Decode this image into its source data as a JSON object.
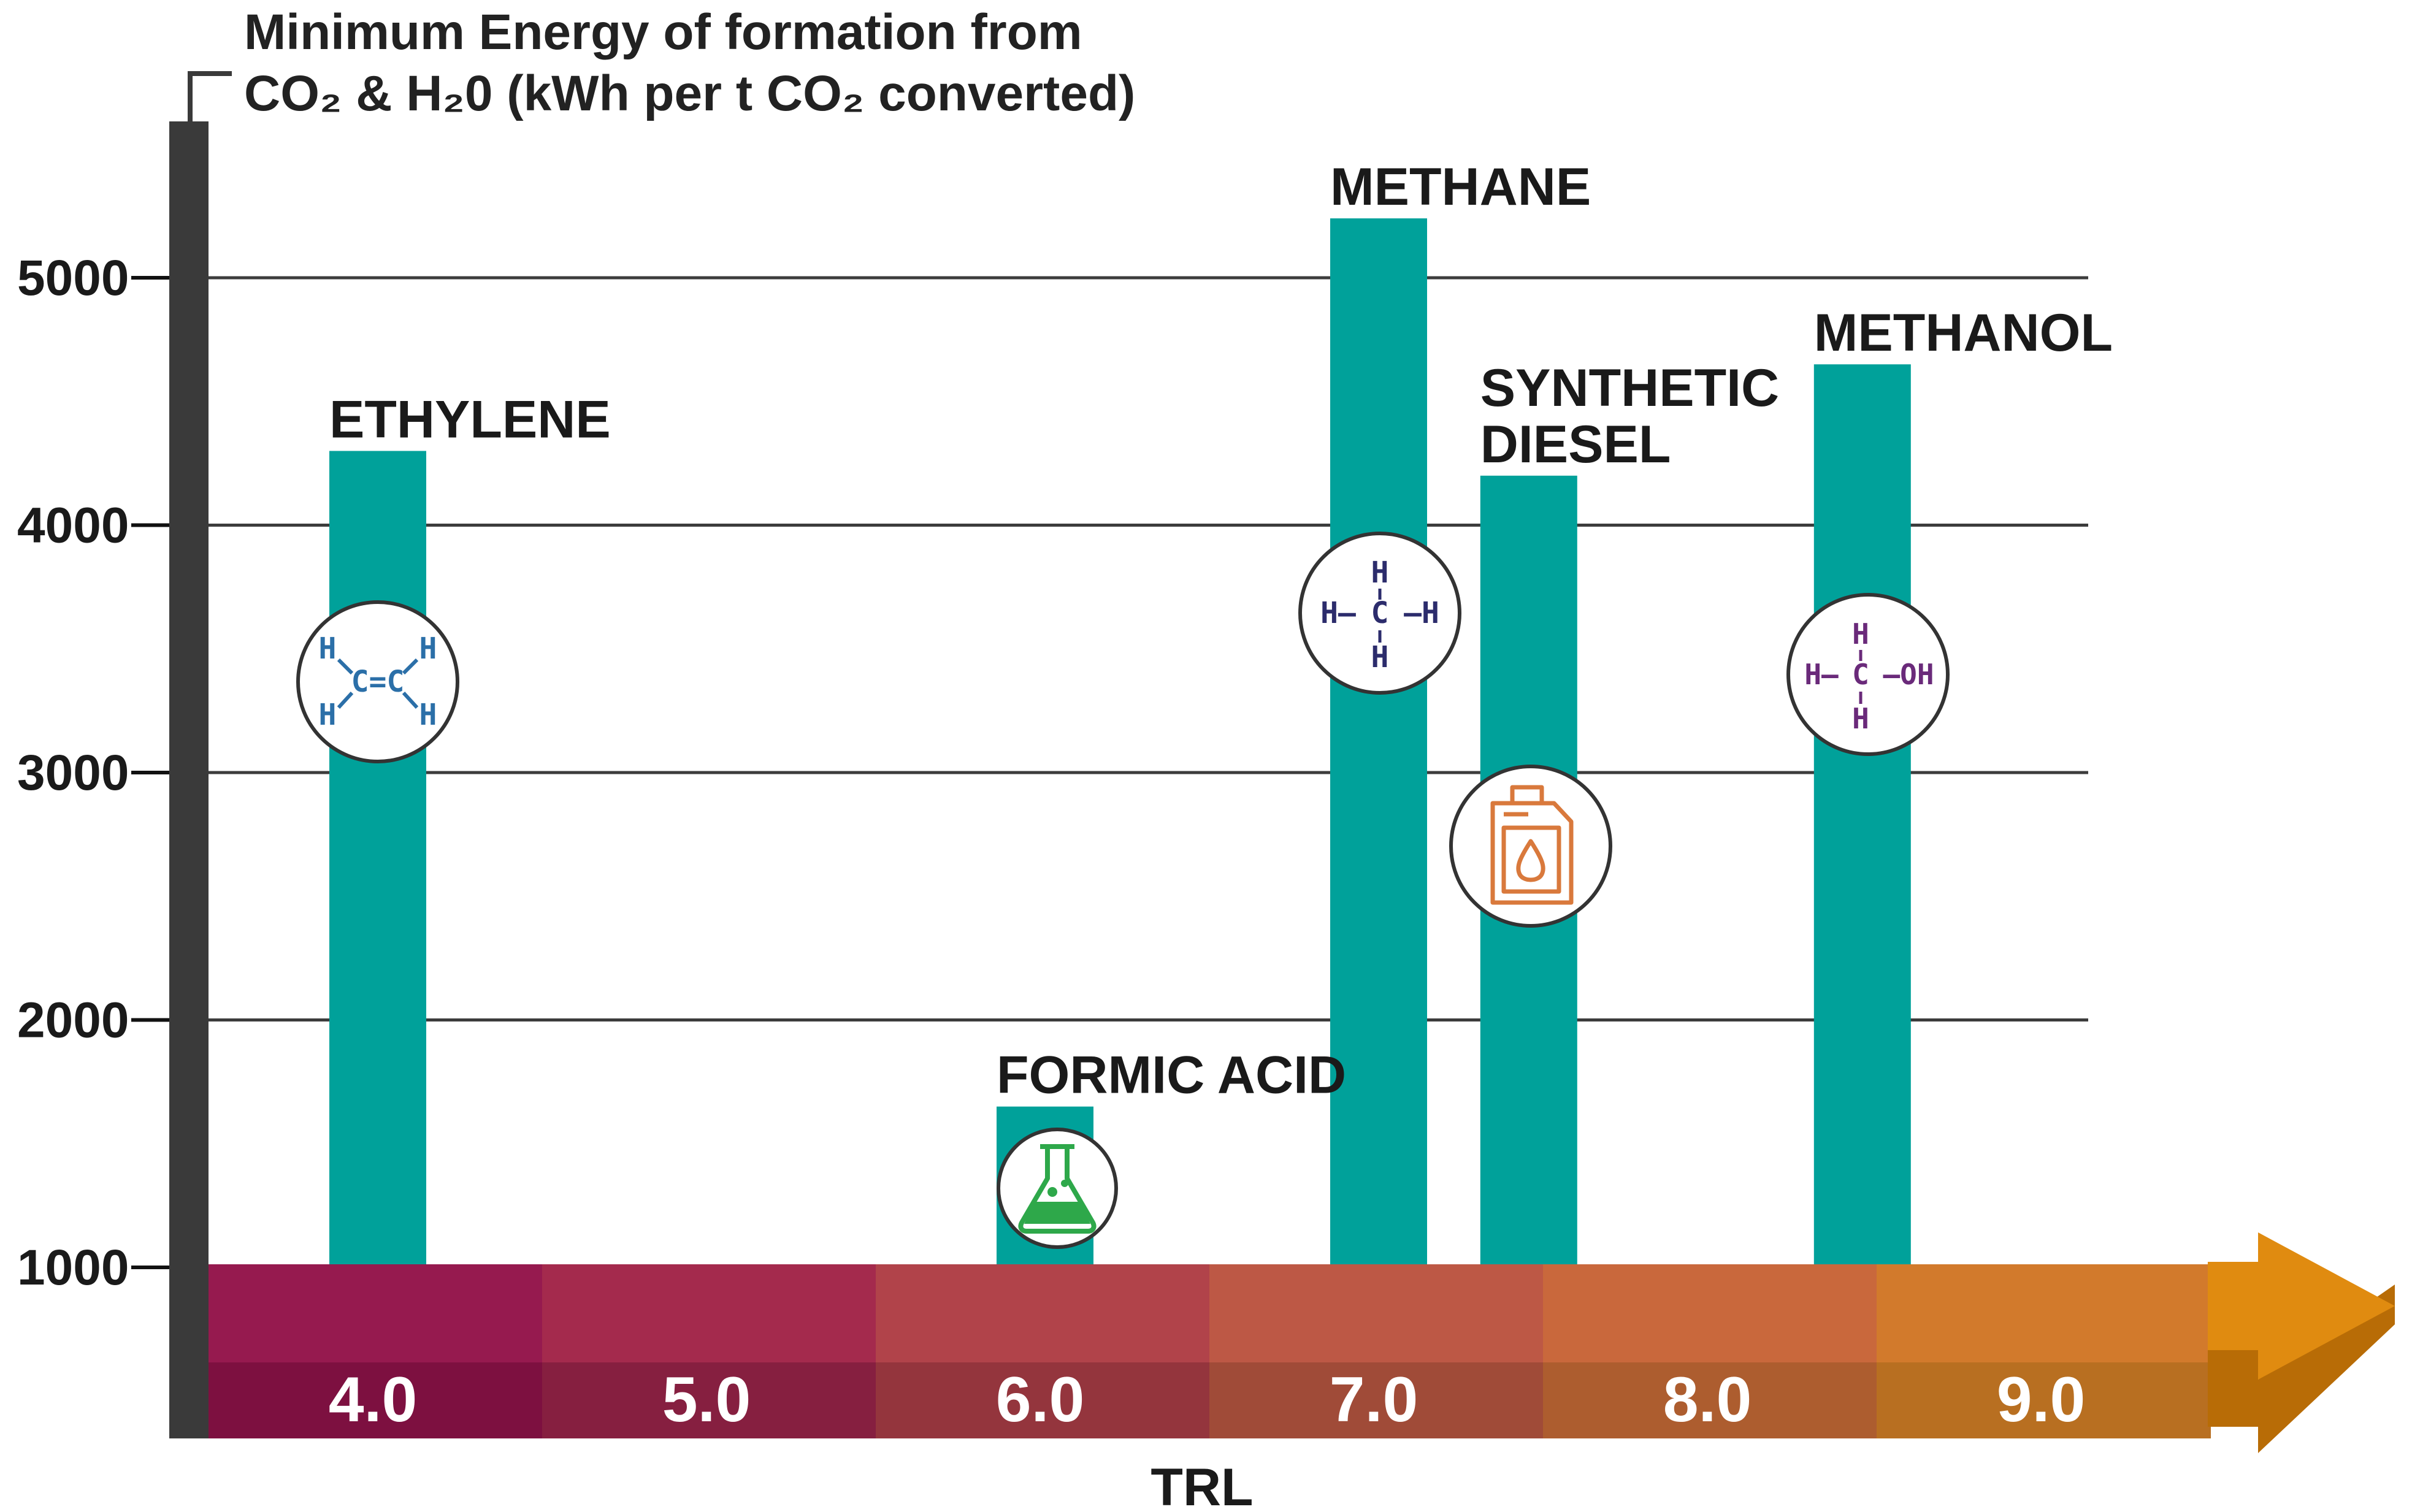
{
  "chart_data": {
    "type": "bar",
    "title_lines": [
      "Minimum Energy of formation from",
      "CO₂ & H₂0 (kWh per t CO₂ converted)"
    ],
    "xlabel": "TRL",
    "ylabel": "Minimum Energy of formation from CO₂ & H₂0 (kWh per t CO₂ converted)",
    "ylim": [
      1000,
      5600
    ],
    "yticks": [
      1000,
      2000,
      3000,
      4000,
      5000
    ],
    "xlim": [
      3.5,
      9.5
    ],
    "xticks": [
      "4.0",
      "5.0",
      "6.0",
      "7.0",
      "8.0",
      "9.0"
    ],
    "grid": true,
    "series": [
      {
        "name": "ETHYLENE",
        "label_lines": [
          "ETHYLENE"
        ],
        "trl": 4.0,
        "value": 4300,
        "icon": "ethylene-structure-icon"
      },
      {
        "name": "FORMIC ACID",
        "label_lines": [
          "FORMIC ACID"
        ],
        "trl": 6.0,
        "value": 1650,
        "icon": "flask-icon"
      },
      {
        "name": "METHANE",
        "label_lines": [
          "METHANE"
        ],
        "trl": 7.0,
        "value": 5240,
        "icon": "methane-structure-icon"
      },
      {
        "name": "SYNTHETIC DIESEL",
        "label_lines": [
          "SYNTHETIC",
          "DIESEL"
        ],
        "trl": 7.45,
        "value": 4200,
        "icon": "fuel-canister-icon"
      },
      {
        "name": "METHANOL",
        "label_lines": [
          "METHANOL"
        ],
        "trl": 8.45,
        "value": 4650,
        "icon": "methanol-structure-icon"
      }
    ]
  },
  "colors": {
    "bar": "#00a19a",
    "axis": "#3a3a3a",
    "grid": "#3c3c3c",
    "trl_top": [
      "#961a4f",
      "#a42a4d",
      "#b1434a",
      "#bd5845",
      "#c9683c",
      "#d27a2c"
    ],
    "trl_bottom": [
      "#7d1040",
      "#861f40",
      "#94353d",
      "#a04b38",
      "#ad5d2f",
      "#b86f21"
    ],
    "arrow": "#e08b10",
    "arrow_dark": "#b86c06"
  },
  "icons": {
    "ethylene": {
      "top_left": "H",
      "top_right": "H",
      "bottom_left": "H",
      "bottom_right": "H",
      "core": "C=C",
      "color": "#2b6fa8"
    },
    "methane": {
      "top": "H",
      "left": "H–",
      "center": "C",
      "right": "–H",
      "bottom": "H",
      "color": "#2c2c6c"
    },
    "methanol": {
      "top": "H",
      "left": "H–",
      "center": "C",
      "right": "–OH",
      "bottom": "H",
      "color": "#6a2a7a"
    }
  }
}
